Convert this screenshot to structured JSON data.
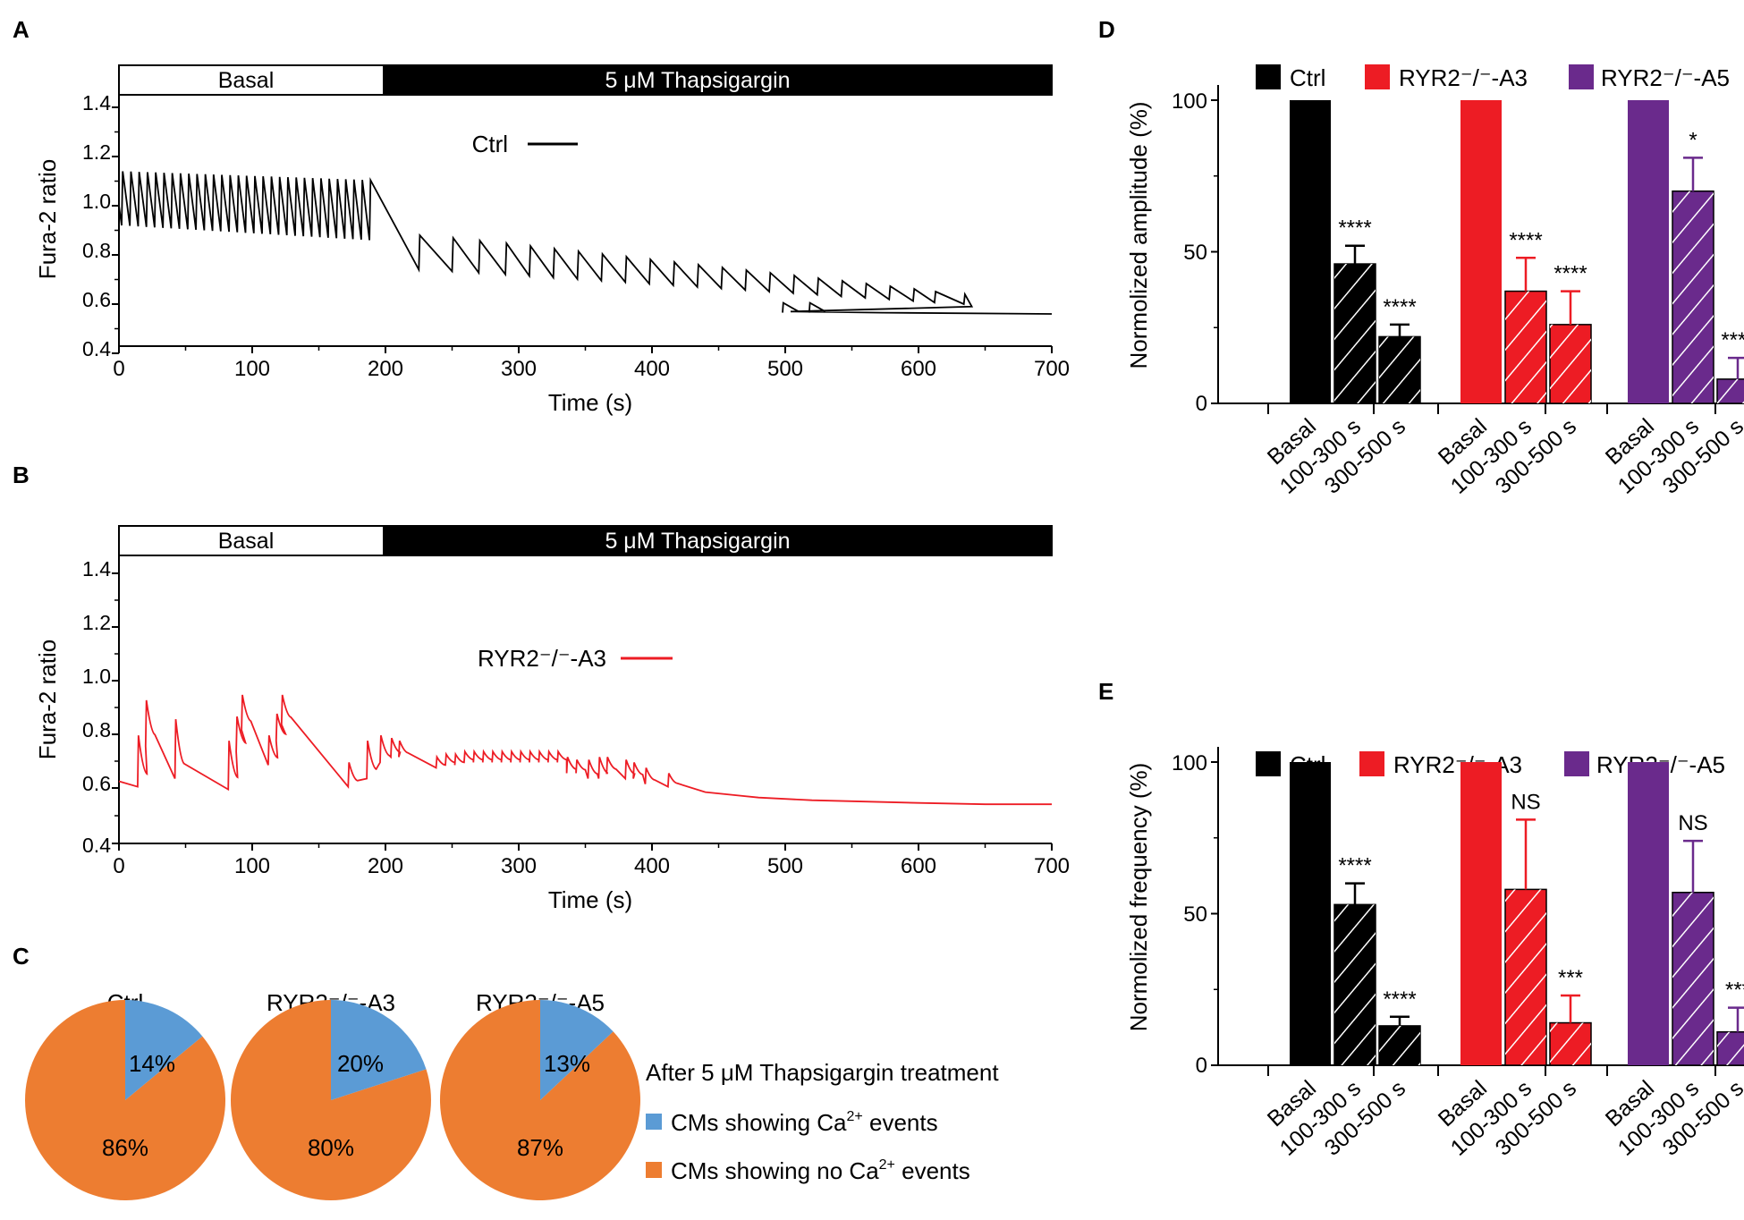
{
  "panels": {
    "A": "A",
    "B": "B",
    "C": "C",
    "D": "D",
    "E": "E"
  },
  "colors": {
    "ctrl": "#000000",
    "a3": "#ed1c24",
    "a5": "#6a2a8c",
    "pie_blue": "#5b9bd5",
    "pie_orange": "#ed7d31"
  },
  "trace_a": {
    "basal_label": "Basal",
    "treat_label": "5 μM Thapsigargin",
    "legend": "Ctrl",
    "ylabel": "Fura-2 ratio",
    "xlabel": "Time (s)",
    "yticks": [
      "0.4",
      "0.6",
      "0.8",
      "1.0",
      "1.2",
      "1.4"
    ],
    "xticks": [
      "0",
      "100",
      "200",
      "300",
      "400",
      "500",
      "600",
      "700"
    ]
  },
  "trace_b": {
    "basal_label": "Basal",
    "treat_label": "5 μM Thapsigargin",
    "legend": "RYR2⁻/⁻-A3",
    "ylabel": "Fura-2 ratio",
    "xlabel": "Time (s)",
    "yticks": [
      "0.4",
      "0.6",
      "0.8",
      "1.0",
      "1.2",
      "1.4"
    ],
    "xticks": [
      "0",
      "100",
      "200",
      "300",
      "400",
      "500",
      "600",
      "700"
    ]
  },
  "pies": {
    "title": "After 5 μM Thapsigargin treatment",
    "legend_blue_pre": "CMs showing Ca",
    "legend_blue_post": " events",
    "legend_orange_pre": "CMs showing no Ca",
    "legend_orange_post": " events",
    "sup": "2+",
    "items": [
      {
        "title": "Ctrl",
        "blue": "14%",
        "orange": "86%"
      },
      {
        "title": "RYR2⁻/⁻-A3",
        "blue": "20%",
        "orange": "80%"
      },
      {
        "title": "RYR2⁻/⁻-A5",
        "blue": "13%",
        "orange": "87%"
      }
    ]
  },
  "bar_d": {
    "ylabel": "Normolized amplitude (%)",
    "yticks": [
      "0",
      "50",
      "100"
    ],
    "legend": [
      "Ctrl",
      "RYR2⁻/⁻-A3",
      "RYR2⁻/⁻-A5"
    ],
    "xlabels": [
      "Basal",
      "100-300 s",
      "300-500 s",
      "Basal",
      "100-300 s",
      "300-500 s",
      "Basal",
      "100-300 s",
      "300-500 s"
    ],
    "sig": [
      "",
      "****",
      "****",
      "",
      "****",
      "****",
      "",
      "*",
      "****"
    ]
  },
  "bar_e": {
    "ylabel": "Normolized frequency (%)",
    "yticks": [
      "0",
      "50",
      "100"
    ],
    "legend": [
      "Ctrl",
      "RYR2⁻/⁻-A3",
      "RYR2⁻/⁻-A5"
    ],
    "xlabels": [
      "Basal",
      "100-300 s",
      "300-500 s",
      "Basal",
      "100-300 s",
      "300-500 s",
      "Basal",
      "100-300 s",
      "300-500 s"
    ],
    "sig": [
      "",
      "****",
      "****",
      "",
      "NS",
      "***",
      "",
      "NS",
      "***"
    ]
  },
  "chart_data": [
    {
      "type": "line",
      "panel": "A",
      "title": "",
      "xlabel": "Time (s)",
      "ylabel": "Fura-2 ratio",
      "xlim": [
        0,
        700
      ],
      "ylim": [
        0.4,
        1.4
      ],
      "series": [
        {
          "name": "Ctrl",
          "color": "#000000",
          "x": [
            0,
            100,
            190,
            220,
            300,
            400,
            500,
            600,
            640,
            700
          ],
          "y": [
            1.02,
            1.0,
            0.97,
            0.82,
            0.72,
            0.68,
            0.65,
            0.62,
            0.58,
            0.56
          ]
        }
      ],
      "annotations": [
        "Basal (0-200 s)",
        "5 μM Thapsigargin (200-700 s)"
      ]
    },
    {
      "type": "line",
      "panel": "B",
      "title": "",
      "xlabel": "Time (s)",
      "ylabel": "Fura-2 ratio",
      "xlim": [
        0,
        700
      ],
      "ylim": [
        0.4,
        1.4
      ],
      "series": [
        {
          "name": "RYR2⁻/⁻-A3",
          "color": "#ed1c24",
          "x": [
            0,
            22,
            92,
            122,
            180,
            200,
            300,
            420,
            500,
            600,
            700
          ],
          "y": [
            0.62,
            0.93,
            0.95,
            0.95,
            0.72,
            0.8,
            0.72,
            0.6,
            0.56,
            0.55,
            0.54
          ]
        }
      ],
      "annotations": [
        "Basal (0-200 s)",
        "5 μM Thapsigargin (200-700 s)"
      ]
    },
    {
      "type": "pie",
      "panel": "C",
      "title": "Ctrl",
      "categories": [
        "CMs showing Ca2+ events",
        "CMs showing no Ca2+ events"
      ],
      "values": [
        14,
        86
      ]
    },
    {
      "type": "pie",
      "panel": "C",
      "title": "RYR2⁻/⁻-A3",
      "categories": [
        "CMs showing Ca2+ events",
        "CMs showing no Ca2+ events"
      ],
      "values": [
        20,
        80
      ]
    },
    {
      "type": "pie",
      "panel": "C",
      "title": "RYR2⁻/⁻-A5",
      "categories": [
        "CMs showing Ca2+ events",
        "CMs showing no Ca2+ events"
      ],
      "values": [
        13,
        87
      ]
    },
    {
      "type": "bar",
      "panel": "D",
      "ylabel": "Normolized amplitude (%)",
      "ylim": [
        0,
        110
      ],
      "categories": [
        "Basal",
        "100-300 s",
        "300-500 s"
      ],
      "series": [
        {
          "name": "Ctrl",
          "values": [
            100,
            46,
            22
          ],
          "errors": [
            0,
            6,
            4
          ]
        },
        {
          "name": "RYR2⁻/⁻-A3",
          "values": [
            100,
            37,
            26
          ],
          "errors": [
            0,
            11,
            11
          ]
        },
        {
          "name": "RYR2⁻/⁻-A5",
          "values": [
            100,
            70,
            8
          ],
          "errors": [
            0,
            11,
            7
          ]
        }
      ]
    },
    {
      "type": "bar",
      "panel": "E",
      "ylabel": "Normolized frequency (%)",
      "ylim": [
        0,
        110
      ],
      "categories": [
        "Basal",
        "100-300 s",
        "300-500 s"
      ],
      "series": [
        {
          "name": "Ctrl",
          "values": [
            100,
            53,
            13
          ],
          "errors": [
            0,
            7,
            3
          ]
        },
        {
          "name": "RYR2⁻/⁻-A3",
          "values": [
            100,
            58,
            14
          ],
          "errors": [
            0,
            23,
            9
          ]
        },
        {
          "name": "RYR2⁻/⁻-A5",
          "values": [
            100,
            57,
            11
          ],
          "errors": [
            0,
            17,
            8
          ]
        }
      ]
    }
  ]
}
